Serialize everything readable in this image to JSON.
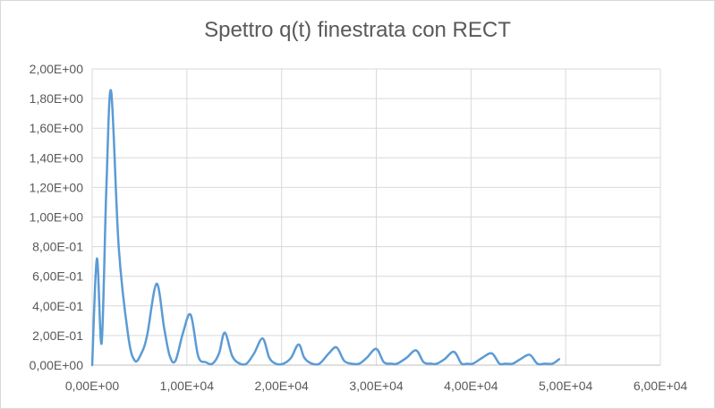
{
  "chart_data": {
    "type": "line",
    "title": "Spettro q(t) finestrata con RECT",
    "xlabel": "",
    "ylabel": "",
    "xlim": [
      0,
      60000
    ],
    "ylim": [
      0,
      2.0
    ],
    "x_ticks": [
      0,
      10000,
      20000,
      30000,
      40000,
      50000,
      60000
    ],
    "x_tick_labels": [
      "0,00E+00",
      "1,00E+04",
      "2,00E+04",
      "3,00E+04",
      "4,00E+04",
      "5,00E+04",
      "6,00E+04"
    ],
    "y_ticks": [
      0,
      0.2,
      0.4,
      0.6,
      0.8,
      1.0,
      1.2,
      1.4,
      1.6,
      1.8,
      2.0
    ],
    "y_tick_labels": [
      "0,00E+00",
      "2,00E-01",
      "4,00E-01",
      "6,00E-01",
      "8,00E-01",
      "1,00E+00",
      "1,20E+00",
      "1,40E+00",
      "1,60E+00",
      "1,80E+00",
      "2,00E+00"
    ],
    "grid": true,
    "legend": "none",
    "series_color": "#5b9bd5",
    "series": [
      {
        "x": [
          0,
          500,
          1000,
          1500,
          2000,
          2800,
          3800,
          4500,
          5200,
          5800,
          6800,
          7600,
          8200,
          8800,
          9600,
          10400,
          11200,
          12000,
          12700,
          13400,
          14000,
          14800,
          15600,
          16300,
          17100,
          18000,
          18700,
          19400,
          20200,
          21000,
          21800,
          22400,
          23200,
          24000,
          25000,
          25800,
          26600,
          27400,
          28200,
          29000,
          30000,
          30800,
          31600,
          32200,
          33200,
          34200,
          35000,
          35800,
          36400,
          37200,
          38200,
          39000,
          39600,
          40200,
          41200,
          42200,
          43000,
          43600,
          44400,
          45200,
          46200,
          47000,
          47800,
          48600,
          49300
        ],
        "values": [
          0.0,
          0.72,
          0.15,
          1.2,
          1.85,
          0.8,
          0.2,
          0.03,
          0.08,
          0.2,
          0.55,
          0.25,
          0.06,
          0.03,
          0.22,
          0.34,
          0.06,
          0.02,
          0.01,
          0.08,
          0.22,
          0.06,
          0.01,
          0.01,
          0.08,
          0.18,
          0.05,
          0.01,
          0.01,
          0.05,
          0.14,
          0.05,
          0.01,
          0.01,
          0.08,
          0.12,
          0.03,
          0.01,
          0.01,
          0.05,
          0.11,
          0.02,
          0.01,
          0.01,
          0.05,
          0.1,
          0.02,
          0.01,
          0.01,
          0.04,
          0.09,
          0.01,
          0.01,
          0.01,
          0.05,
          0.08,
          0.01,
          0.01,
          0.01,
          0.04,
          0.07,
          0.01,
          0.01,
          0.01,
          0.04
        ]
      }
    ]
  }
}
